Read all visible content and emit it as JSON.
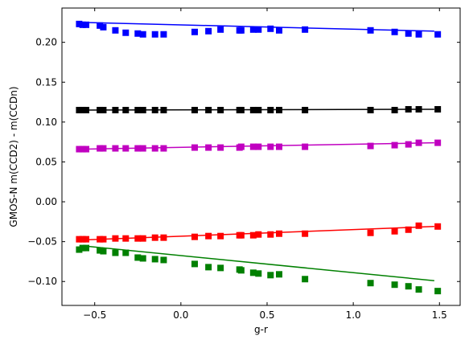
{
  "chart_data": {
    "type": "scatter",
    "xlabel": "g-r",
    "ylabel": "GMOS-N m(CCD2) - m(CCDn)",
    "xlim": [
      -0.69,
      1.62
    ],
    "ylim": [
      -0.13,
      0.243
    ],
    "xticks": [
      -0.5,
      0.0,
      0.5,
      1.0,
      1.5
    ],
    "xtick_labels": [
      "−0.5",
      "0.0",
      "0.5",
      "1.0",
      "1.5"
    ],
    "yticks": [
      -0.1,
      -0.05,
      0.0,
      0.05,
      0.1,
      0.15,
      0.2
    ],
    "ytick_labels": [
      "−0.10",
      "−0.05",
      "0.00",
      "0.05",
      "0.10",
      "0.15",
      "0.20"
    ],
    "grid": false,
    "ticks_direction": "in",
    "series": [
      {
        "color": "#0000ff",
        "marker": "square",
        "x": [
          -0.59,
          -0.57,
          -0.55,
          -0.47,
          -0.45,
          -0.38,
          -0.32,
          -0.25,
          -0.22,
          -0.15,
          -0.1,
          0.08,
          0.16,
          0.23,
          0.34,
          0.35,
          0.42,
          0.45,
          0.52,
          0.57,
          0.72,
          1.1,
          1.24,
          1.32,
          1.38,
          1.49
        ],
        "y": [
          0.223,
          0.222,
          0.222,
          0.221,
          0.219,
          0.215,
          0.212,
          0.211,
          0.21,
          0.21,
          0.21,
          0.213,
          0.214,
          0.216,
          0.215,
          0.215,
          0.216,
          0.216,
          0.217,
          0.215,
          0.216,
          0.215,
          0.213,
          0.211,
          0.21,
          0.21
        ],
        "fit": {
          "x": [
            -0.58,
            1.47
          ],
          "y": [
            0.225,
            0.214
          ]
        }
      },
      {
        "color": "#000000",
        "marker": "square",
        "x": [
          -0.59,
          -0.57,
          -0.55,
          -0.47,
          -0.45,
          -0.38,
          -0.32,
          -0.25,
          -0.22,
          -0.15,
          -0.1,
          0.08,
          0.16,
          0.23,
          0.34,
          0.35,
          0.42,
          0.45,
          0.52,
          0.57,
          0.72,
          1.1,
          1.24,
          1.32,
          1.38,
          1.49
        ],
        "y": [
          0.115,
          0.115,
          0.115,
          0.115,
          0.115,
          0.115,
          0.115,
          0.115,
          0.115,
          0.115,
          0.115,
          0.115,
          0.115,
          0.115,
          0.115,
          0.115,
          0.115,
          0.115,
          0.115,
          0.115,
          0.115,
          0.115,
          0.115,
          0.116,
          0.116,
          0.116
        ],
        "fit": {
          "x": [
            -0.58,
            1.47
          ],
          "y": [
            0.115,
            0.116
          ]
        }
      },
      {
        "color": "#c000c0",
        "marker": "square",
        "x": [
          -0.59,
          -0.57,
          -0.55,
          -0.47,
          -0.45,
          -0.38,
          -0.32,
          -0.25,
          -0.22,
          -0.15,
          -0.1,
          0.08,
          0.16,
          0.23,
          0.34,
          0.35,
          0.42,
          0.45,
          0.52,
          0.57,
          0.72,
          1.1,
          1.24,
          1.32,
          1.38,
          1.49
        ],
        "y": [
          0.066,
          0.066,
          0.066,
          0.067,
          0.067,
          0.067,
          0.067,
          0.067,
          0.067,
          0.067,
          0.067,
          0.068,
          0.068,
          0.068,
          0.068,
          0.069,
          0.069,
          0.069,
          0.069,
          0.069,
          0.069,
          0.07,
          0.071,
          0.072,
          0.074,
          0.074
        ],
        "fit": {
          "x": [
            -0.58,
            1.47
          ],
          "y": [
            0.066,
            0.074
          ]
        }
      },
      {
        "color": "#ff0000",
        "marker": "square",
        "x": [
          -0.59,
          -0.57,
          -0.55,
          -0.47,
          -0.45,
          -0.38,
          -0.32,
          -0.25,
          -0.22,
          -0.15,
          -0.1,
          0.08,
          0.16,
          0.23,
          0.34,
          0.35,
          0.42,
          0.45,
          0.52,
          0.57,
          0.72,
          1.1,
          1.24,
          1.32,
          1.38,
          1.49
        ],
        "y": [
          -0.047,
          -0.047,
          -0.047,
          -0.047,
          -0.047,
          -0.046,
          -0.046,
          -0.046,
          -0.046,
          -0.045,
          -0.045,
          -0.044,
          -0.043,
          -0.043,
          -0.042,
          -0.042,
          -0.042,
          -0.041,
          -0.041,
          -0.04,
          -0.04,
          -0.039,
          -0.037,
          -0.035,
          -0.03,
          -0.031
        ],
        "fit": {
          "x": [
            -0.58,
            1.47
          ],
          "y": [
            -0.048,
            -0.031
          ]
        }
      },
      {
        "color": "#008000",
        "marker": "square",
        "x": [
          -0.59,
          -0.57,
          -0.55,
          -0.47,
          -0.45,
          -0.38,
          -0.32,
          -0.25,
          -0.22,
          -0.15,
          -0.1,
          0.08,
          0.16,
          0.23,
          0.34,
          0.35,
          0.42,
          0.45,
          0.52,
          0.57,
          0.72,
          1.1,
          1.24,
          1.32,
          1.38,
          1.49
        ],
        "y": [
          -0.06,
          -0.058,
          -0.058,
          -0.061,
          -0.062,
          -0.064,
          -0.064,
          -0.07,
          -0.071,
          -0.072,
          -0.073,
          -0.078,
          -0.082,
          -0.083,
          -0.085,
          -0.086,
          -0.089,
          -0.09,
          -0.092,
          -0.091,
          -0.097,
          -0.102,
          -0.104,
          -0.106,
          -0.11,
          -0.112
        ],
        "fit": {
          "x": [
            -0.58,
            1.47
          ],
          "y": [
            -0.055,
            -0.099
          ]
        }
      }
    ]
  }
}
